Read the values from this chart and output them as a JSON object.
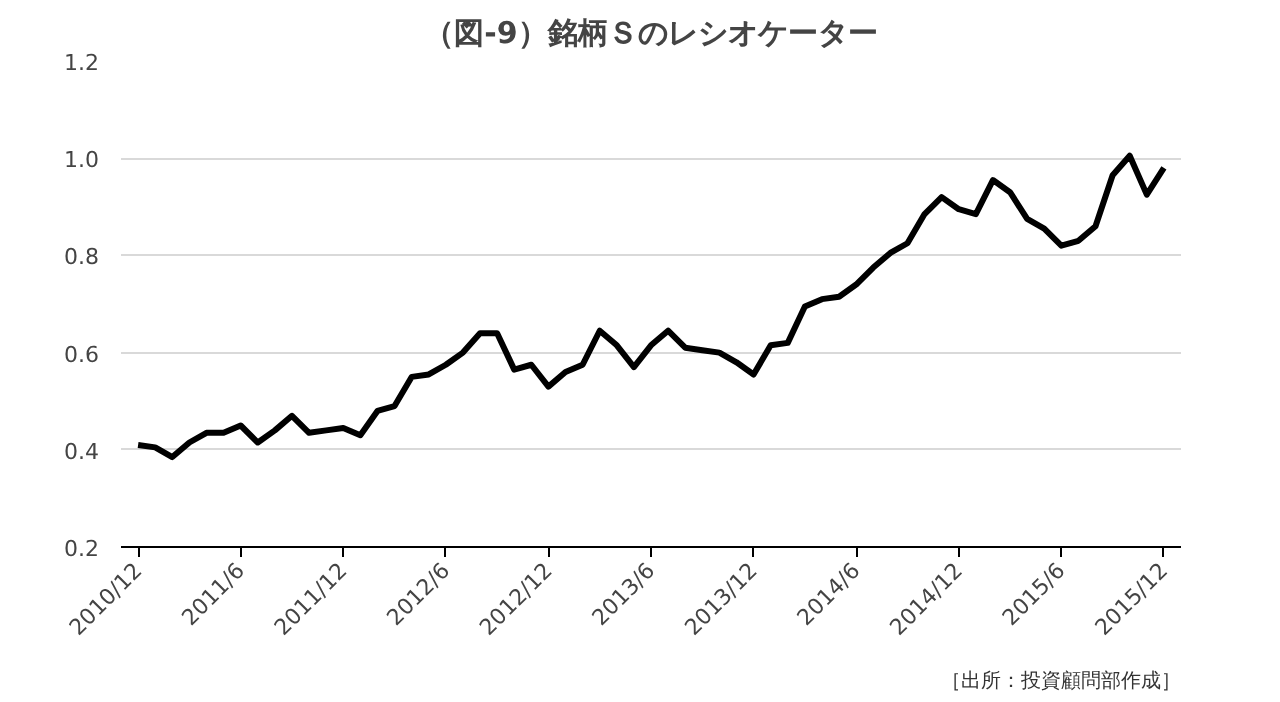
{
  "chart_data": {
    "type": "line",
    "title": "（図-9）銘柄Ｓのレシオケーター",
    "x": [
      "2010-12",
      "2011-01",
      "2011-02",
      "2011-03",
      "2011-04",
      "2011-05",
      "2011-06",
      "2011-07",
      "2011-08",
      "2011-09",
      "2011-10",
      "2011-11",
      "2011-12",
      "2012-01",
      "2012-02",
      "2012-03",
      "2012-04",
      "2012-05",
      "2012-06",
      "2012-07",
      "2012-08",
      "2012-09",
      "2012-10",
      "2012-11",
      "2012-12",
      "2013-01",
      "2013-02",
      "2013-03",
      "2013-04",
      "2013-05",
      "2013-06",
      "2013-07",
      "2013-08",
      "2013-09",
      "2013-10",
      "2013-11",
      "2013-12",
      "2014-01",
      "2014-02",
      "2014-03",
      "2014-04",
      "2014-05",
      "2014-06",
      "2014-07",
      "2014-08",
      "2014-09",
      "2014-10",
      "2014-11",
      "2014-12",
      "2015-01",
      "2015-02",
      "2015-03",
      "2015-04",
      "2015-05",
      "2015-06",
      "2015-07",
      "2015-08",
      "2015-09",
      "2015-10",
      "2015-11",
      "2015-12"
    ],
    "series": [
      {
        "color": "#000000",
        "values": [
          0.41,
          0.405,
          0.385,
          0.415,
          0.435,
          0.435,
          0.45,
          0.415,
          0.44,
          0.47,
          0.435,
          0.44,
          0.445,
          0.43,
          0.48,
          0.49,
          0.55,
          0.555,
          0.575,
          0.6,
          0.64,
          0.64,
          0.565,
          0.575,
          0.53,
          0.56,
          0.575,
          0.645,
          0.615,
          0.57,
          0.615,
          0.645,
          0.61,
          0.605,
          0.6,
          0.58,
          0.555,
          0.615,
          0.62,
          0.695,
          0.71,
          0.715,
          0.74,
          0.775,
          0.805,
          0.825,
          0.885,
          0.92,
          0.895,
          0.885,
          0.955,
          0.93,
          0.875,
          0.855,
          0.82,
          0.83,
          0.86,
          0.965,
          1.005,
          0.925,
          0.98
        ]
      }
    ],
    "xlim": [
      "2010-11",
      "2016-01"
    ],
    "xticks": [
      {
        "value": "2010-12",
        "label": "2010/12"
      },
      {
        "value": "2011-06",
        "label": "2011/6"
      },
      {
        "value": "2011-12",
        "label": "2011/12"
      },
      {
        "value": "2012-06",
        "label": "2012/6"
      },
      {
        "value": "2012-12",
        "label": "2012/12"
      },
      {
        "value": "2013-06",
        "label": "2013/6"
      },
      {
        "value": "2013-12",
        "label": "2013/12"
      },
      {
        "value": "2014-06",
        "label": "2014/6"
      },
      {
        "value": "2014-12",
        "label": "2014/12"
      },
      {
        "value": "2015-06",
        "label": "2015/6"
      },
      {
        "value": "2015-12",
        "label": "2015/12"
      }
    ],
    "ylim": [
      0.2,
      1.2
    ],
    "yticks": [
      {
        "value": 0.2,
        "label": "0.2"
      },
      {
        "value": 0.4,
        "label": "0.4"
      },
      {
        "value": 0.6,
        "label": "0.6"
      },
      {
        "value": 0.8,
        "label": "0.8"
      },
      {
        "value": 1.0,
        "label": "1.0"
      },
      {
        "value": 1.2,
        "label": "1.2"
      }
    ],
    "grid": "y",
    "marker": "none",
    "line_style": "solid",
    "annotations": [
      "［出所：投資顧問部作成］"
    ]
  }
}
